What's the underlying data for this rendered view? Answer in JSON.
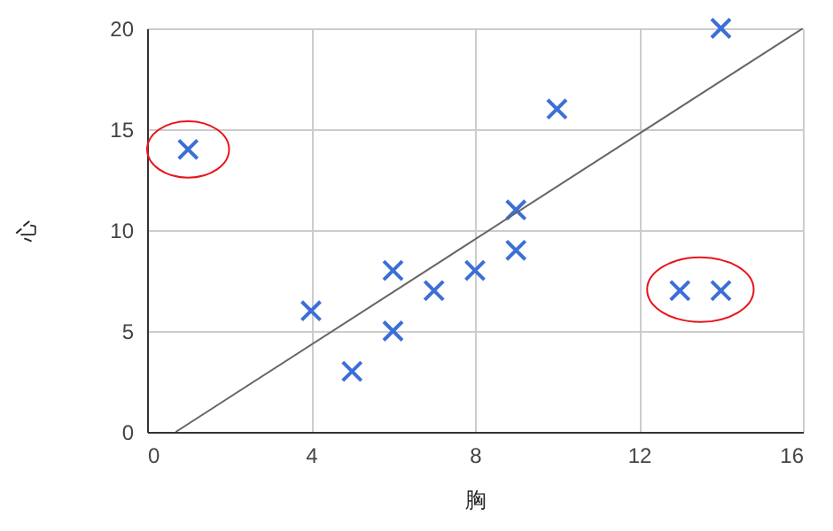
{
  "chart_data": {
    "type": "scatter",
    "xlabel": "胸",
    "ylabel": "心",
    "xlim": [
      0,
      16
    ],
    "ylim": [
      0,
      20
    ],
    "xticks": [
      0,
      4,
      8,
      12,
      16
    ],
    "yticks": [
      0,
      5,
      10,
      15,
      20
    ],
    "grid": true,
    "series": [
      {
        "color": "#3c6fd6",
        "marker": "cross",
        "x": [
          1,
          4,
          5,
          6,
          6,
          7,
          8,
          9,
          9,
          10,
          13,
          14,
          14
        ],
        "values": [
          14,
          6,
          3,
          8,
          5,
          7,
          8,
          11,
          9,
          16,
          7,
          7,
          20
        ]
      },
      {
        "type": "line",
        "marker": "none",
        "color": "#666666",
        "x": [
          0.7,
          16
        ],
        "values": [
          0,
          20
        ]
      }
    ]
  }
}
